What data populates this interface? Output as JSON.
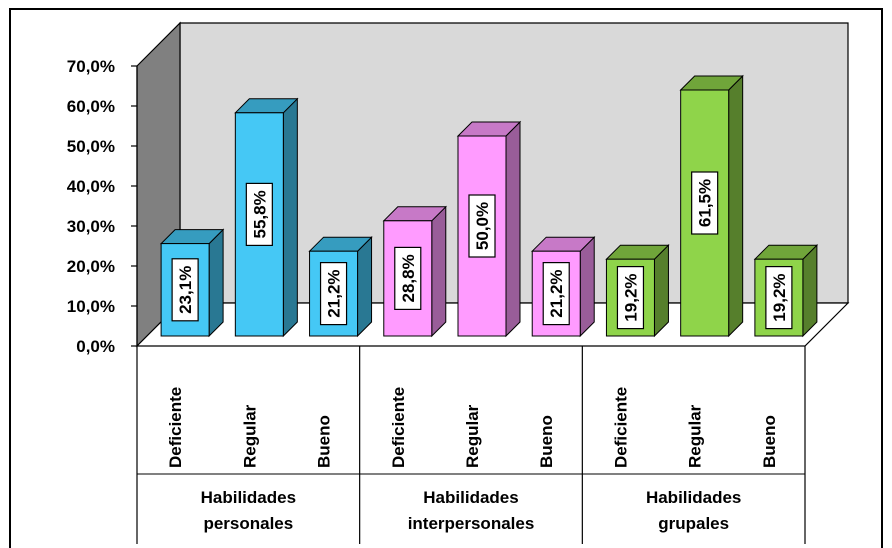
{
  "chart_data": {
    "type": "bar",
    "title": "",
    "xlabel": "",
    "ylabel": "",
    "ylim": [
      0,
      70
    ],
    "y_ticks": [
      "0,0%",
      "10,0%",
      "20,0%",
      "30,0%",
      "40,0%",
      "50,0%",
      "60,0%",
      "70,0%"
    ],
    "grid": false,
    "style": "3d-column",
    "groups": [
      {
        "label": "Habilidades personales",
        "label_lines": [
          "Habilidades",
          "personales"
        ],
        "color": "#45C8F5",
        "categories": [
          "Deficiente",
          "Regular",
          "Bueno"
        ],
        "values": [
          23.1,
          55.8,
          21.2
        ],
        "data_labels": [
          "23,1%",
          "55,8%",
          "21,2%"
        ]
      },
      {
        "label": "Habilidades interpersonales",
        "label_lines": [
          "Habilidades",
          "interpersonales"
        ],
        "color": "#FF9BFF",
        "categories": [
          "Deficiente",
          "Regular",
          "Bueno"
        ],
        "values": [
          28.8,
          50.0,
          21.2
        ],
        "data_labels": [
          "28,8%",
          "50,0%",
          "21,2%"
        ]
      },
      {
        "label": "Habilidades grupales",
        "label_lines": [
          "Habilidades",
          "grupales"
        ],
        "color": "#8FD44A",
        "categories": [
          "Deficiente",
          "Regular",
          "Bueno"
        ],
        "values": [
          19.2,
          61.5,
          19.2
        ],
        "data_labels": [
          "19,2%",
          "61,5%",
          "19,2%"
        ]
      }
    ]
  },
  "colors": {
    "back_wall": "#D9D9D9",
    "side_wall": "#808080",
    "axis": "#000000"
  }
}
